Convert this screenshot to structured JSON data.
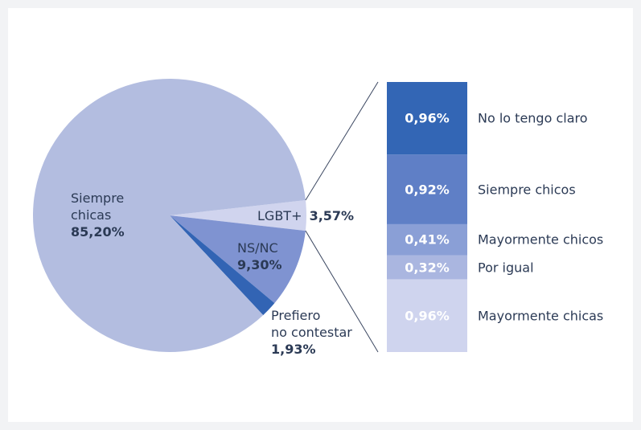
{
  "chart_data": [
    {
      "type": "pie",
      "categories": [
        "LGBT+",
        "NS/NC",
        "Prefiero no contestar",
        "Siempre chicas"
      ],
      "values": [
        3.57,
        9.3,
        1.93,
        85.2
      ],
      "value_labels": [
        "3,57%",
        "9,30%",
        "1,93%",
        "85,20%"
      ],
      "colors": [
        "#d0d4ee",
        "#7f93d1",
        "#3264b4",
        "#b3bde0"
      ]
    },
    {
      "type": "bar",
      "categories": [
        "No lo tengo claro",
        "Siempre chicos",
        "Mayormente chicos",
        "Por igual",
        "Mayormente chicas"
      ],
      "values": [
        0.96,
        0.92,
        0.41,
        0.32,
        0.96
      ],
      "value_labels": [
        "0,96%",
        "0,92%",
        "0,41%",
        "0,32%",
        "0,96%"
      ],
      "colors": [
        "#3366b5",
        "#5f7fc6",
        "#8a9fd6",
        "#aab6e0",
        "#cfd4ee"
      ]
    }
  ]
}
